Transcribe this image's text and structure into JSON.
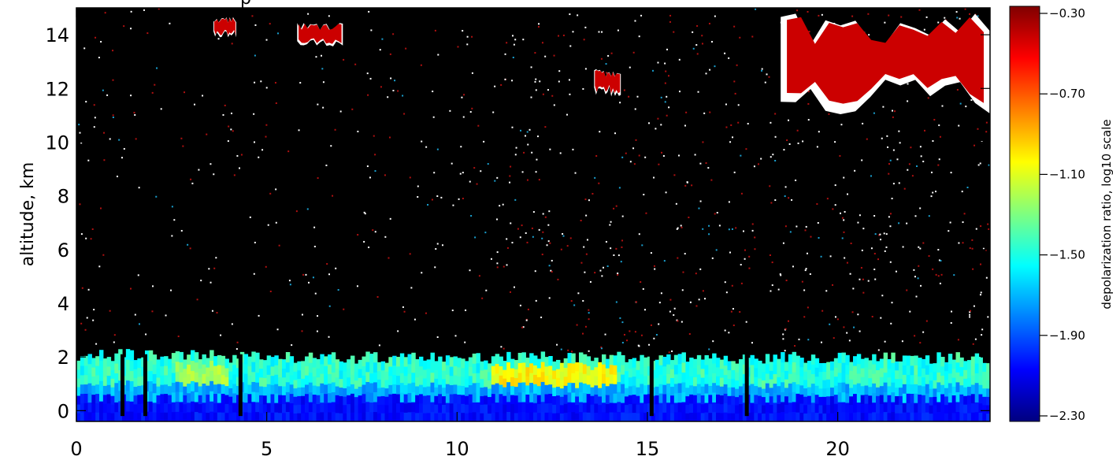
{
  "chart_data": {
    "type": "heatmap",
    "title_fragment": "p",
    "ylabel": "altitude, km",
    "xlabel": "",
    "xlim": [
      0,
      24
    ],
    "ylim": [
      -0.4,
      15
    ],
    "x_ticks": [
      {
        "value": 0,
        "label": "0"
      },
      {
        "value": 5,
        "label": "5"
      },
      {
        "value": 10,
        "label": "10"
      },
      {
        "value": 15,
        "label": "15"
      },
      {
        "value": 20,
        "label": "20"
      }
    ],
    "y_ticks": [
      {
        "value": 0,
        "label": "0"
      },
      {
        "value": 2,
        "label": "2"
      },
      {
        "value": 4,
        "label": "4"
      },
      {
        "value": 6,
        "label": "6"
      },
      {
        "value": 8,
        "label": "8"
      },
      {
        "value": 10,
        "label": "10"
      },
      {
        "value": 12,
        "label": "12"
      },
      {
        "value": 14,
        "label": "14"
      }
    ],
    "colorbar": {
      "title": "depolarization ratio, log10 scale",
      "range": [
        -2.3,
        -0.3
      ],
      "ticks": [
        {
          "value": -0.3,
          "label": "−0.30"
        },
        {
          "value": -0.7,
          "label": "−0.70"
        },
        {
          "value": -1.1,
          "label": "−1.10"
        },
        {
          "value": -1.5,
          "label": "−1.50"
        },
        {
          "value": -1.9,
          "label": "−1.90"
        },
        {
          "value": -2.3,
          "label": "−2.30"
        }
      ],
      "colormap": [
        "#00007f",
        "#0000ff",
        "#007fff",
        "#00ffff",
        "#7fff7f",
        "#ffff00",
        "#ff7f00",
        "#ff0000",
        "#7f0000"
      ]
    },
    "background_color": "#000000",
    "features": [
      {
        "name": "boundary layer",
        "x_range": [
          0,
          24
        ],
        "alt_range": [
          0,
          2.2
        ],
        "log10_value": -1.7
      },
      {
        "name": "boundary layer enhanced band",
        "x_range": [
          11,
          14
        ],
        "alt_range": [
          0.8,
          1.3
        ],
        "log10_value": -1.15
      },
      {
        "name": "cirrus",
        "x_range": [
          18.5,
          24
        ],
        "alt_range": [
          11,
          15
        ],
        "log10_value": -0.45
      },
      {
        "name": "cirrus",
        "x_range": [
          13.6,
          14.3
        ],
        "alt_range": [
          11.7,
          12.8
        ],
        "log10_value": -0.45
      },
      {
        "name": "cirrus",
        "x_range": [
          5.8,
          7
        ],
        "alt_range": [
          13.5,
          14.5
        ],
        "log10_value": -0.45
      },
      {
        "name": "cirrus",
        "x_range": [
          3.6,
          4.2
        ],
        "alt_range": [
          13.9,
          14.7
        ],
        "log10_value": -0.45
      }
    ]
  }
}
